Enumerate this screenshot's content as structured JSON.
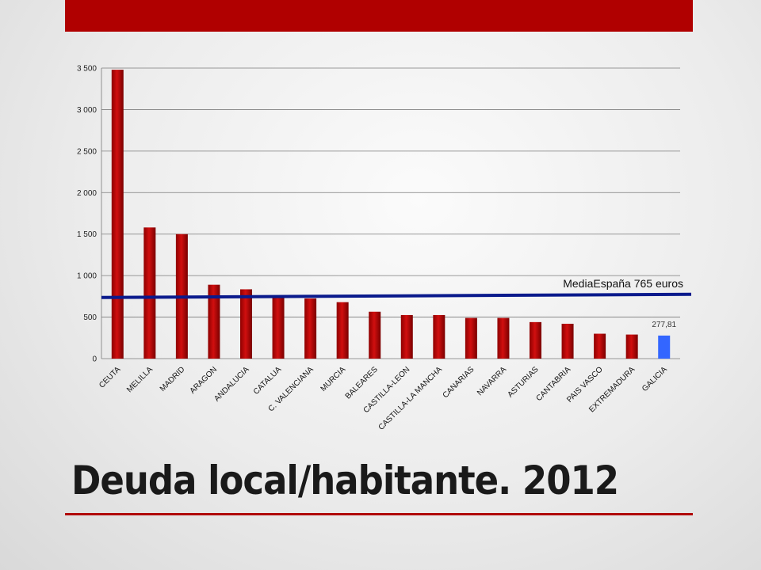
{
  "colors": {
    "accent": "#b00000",
    "bar": "#d10f0f",
    "bar_highlight": "#3366ff",
    "average_line": "#0a1a8c"
  },
  "title": "Deuda local/habitante. 2012",
  "chart_data": {
    "type": "bar",
    "categories": [
      "CEUTA",
      "MELILLA",
      "MADRID",
      "ARAGON",
      "ANDALUCIA",
      "CATALUA",
      "C. VALENCIANA",
      "MURCIA",
      "BALEARES",
      "CASTILLA-LEON",
      "CASTILLA-LA MANCHA",
      "CANARIAS",
      "NAVARRA",
      "ASTURIAS",
      "CANTABRIA",
      "PAIS VASCO",
      "EXTREMADURA",
      "GALICIA"
    ],
    "values": [
      3480,
      1580,
      1500,
      890,
      835,
      750,
      725,
      680,
      565,
      525,
      525,
      490,
      490,
      440,
      420,
      300,
      290,
      277.81
    ],
    "highlight_index": 17,
    "ylim": [
      0,
      3500
    ],
    "yticks": [
      0,
      500,
      1000,
      1500,
      2000,
      2500,
      3000,
      3500
    ],
    "ytick_labels": [
      "0",
      "500",
      "1 000",
      "1 500",
      "2 000",
      "2 500",
      "3 000",
      "3 500"
    ],
    "grid": true,
    "data_labels": [
      {
        "index": 17,
        "text": "277,81"
      }
    ],
    "average_line": {
      "value": 765,
      "label": "MediaEspaña 765 euros"
    }
  }
}
